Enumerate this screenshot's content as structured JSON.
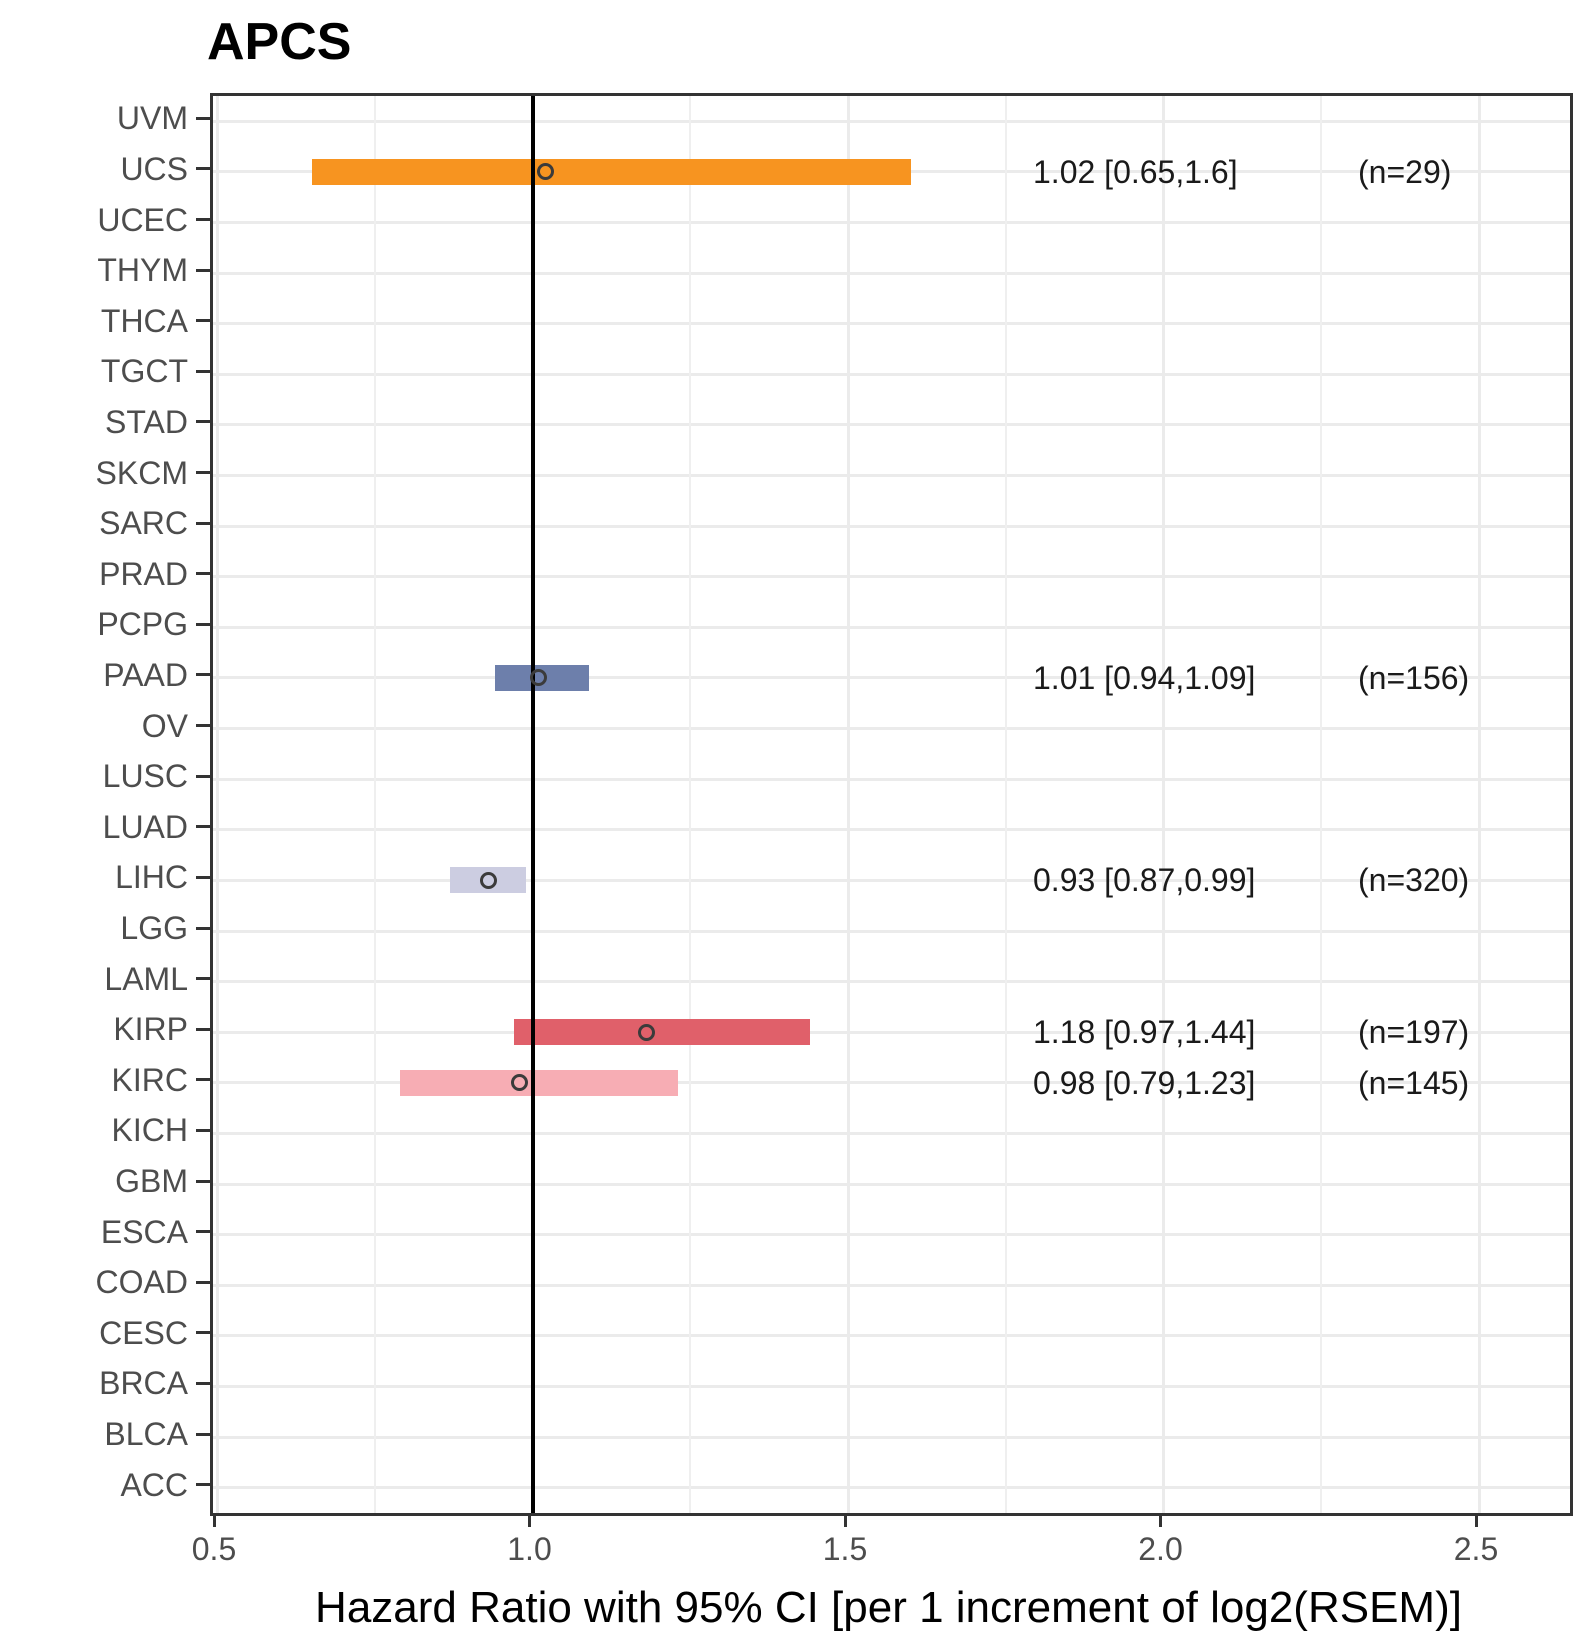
{
  "title": "APCS",
  "chart_data": {
    "type": "forest",
    "title": "APCS",
    "xlabel": "Hazard Ratio with 95% CI [per 1 increment of log2(RSEM)]",
    "xlim": [
      0.494,
      2.644
    ],
    "x_ticks": [
      0.5,
      1.0,
      1.5,
      2.0,
      2.5
    ],
    "x_tick_labels": [
      "0.5",
      "1.0",
      "1.5",
      "2.0",
      "2.5"
    ],
    "x_minor_ticks": [
      0.75,
      1.25,
      1.75,
      2.25
    ],
    "refline_x": 1.0,
    "grid": true,
    "legend": "none",
    "categories": [
      "UVM",
      "UCS",
      "UCEC",
      "THYM",
      "THCA",
      "TGCT",
      "STAD",
      "SKCM",
      "SARC",
      "PRAD",
      "PCPG",
      "PAAD",
      "OV",
      "LUSC",
      "LUAD",
      "LIHC",
      "LGG",
      "LAML",
      "KIRP",
      "KIRC",
      "KICH",
      "GBM",
      "ESCA",
      "COAD",
      "CESC",
      "BRCA",
      "BLCA",
      "ACC"
    ],
    "rows": [
      {
        "label": "UVM"
      },
      {
        "label": "UCS",
        "hr": 1.02,
        "ci_low": 0.65,
        "ci_high": 1.6,
        "n": 29,
        "color": "#F79420",
        "ci_text": "1.02 [0.65,1.6]",
        "n_text": "(n=29)"
      },
      {
        "label": "UCEC"
      },
      {
        "label": "THYM"
      },
      {
        "label": "THCA"
      },
      {
        "label": "TGCT"
      },
      {
        "label": "STAD"
      },
      {
        "label": "SKCM"
      },
      {
        "label": "SARC"
      },
      {
        "label": "PRAD"
      },
      {
        "label": "PCPG"
      },
      {
        "label": "PAAD",
        "hr": 1.01,
        "ci_low": 0.94,
        "ci_high": 1.09,
        "n": 156,
        "color": "#6D7FAB",
        "ci_text": "1.01 [0.94,1.09]",
        "n_text": "(n=156)"
      },
      {
        "label": "OV"
      },
      {
        "label": "LUSC"
      },
      {
        "label": "LUAD"
      },
      {
        "label": "LIHC",
        "hr": 0.93,
        "ci_low": 0.87,
        "ci_high": 0.99,
        "n": 320,
        "color": "#CCCDE1",
        "ci_text": "0.93 [0.87,0.99]",
        "n_text": "(n=320)"
      },
      {
        "label": "LGG"
      },
      {
        "label": "LAML"
      },
      {
        "label": "KIRP",
        "hr": 1.18,
        "ci_low": 0.97,
        "ci_high": 1.44,
        "n": 197,
        "color": "#E0606A",
        "ci_text": "1.18 [0.97,1.44]",
        "n_text": "(n=197)"
      },
      {
        "label": "KIRC",
        "hr": 0.98,
        "ci_low": 0.79,
        "ci_high": 1.23,
        "n": 145,
        "color": "#F7ADB4",
        "ci_text": "0.98 [0.79,1.23]",
        "n_text": "(n=145)"
      },
      {
        "label": "KICH"
      },
      {
        "label": "GBM"
      },
      {
        "label": "ESCA"
      },
      {
        "label": "COAD"
      },
      {
        "label": "CESC"
      },
      {
        "label": "BRCA"
      },
      {
        "label": "BLCA"
      },
      {
        "label": "ACC"
      }
    ],
    "colors": {
      "refline": "#000000",
      "grid_major": "#EBEBEB",
      "grid_minor": "#EFEFEF",
      "panel_border": "#333333",
      "tick": "#333333",
      "axis_text": "#4D4D4D",
      "title_text": "#000000",
      "annotation_text": "#1A1A1A",
      "point_stroke": "#3B3B3B",
      "background": "#FFFFFF"
    }
  }
}
